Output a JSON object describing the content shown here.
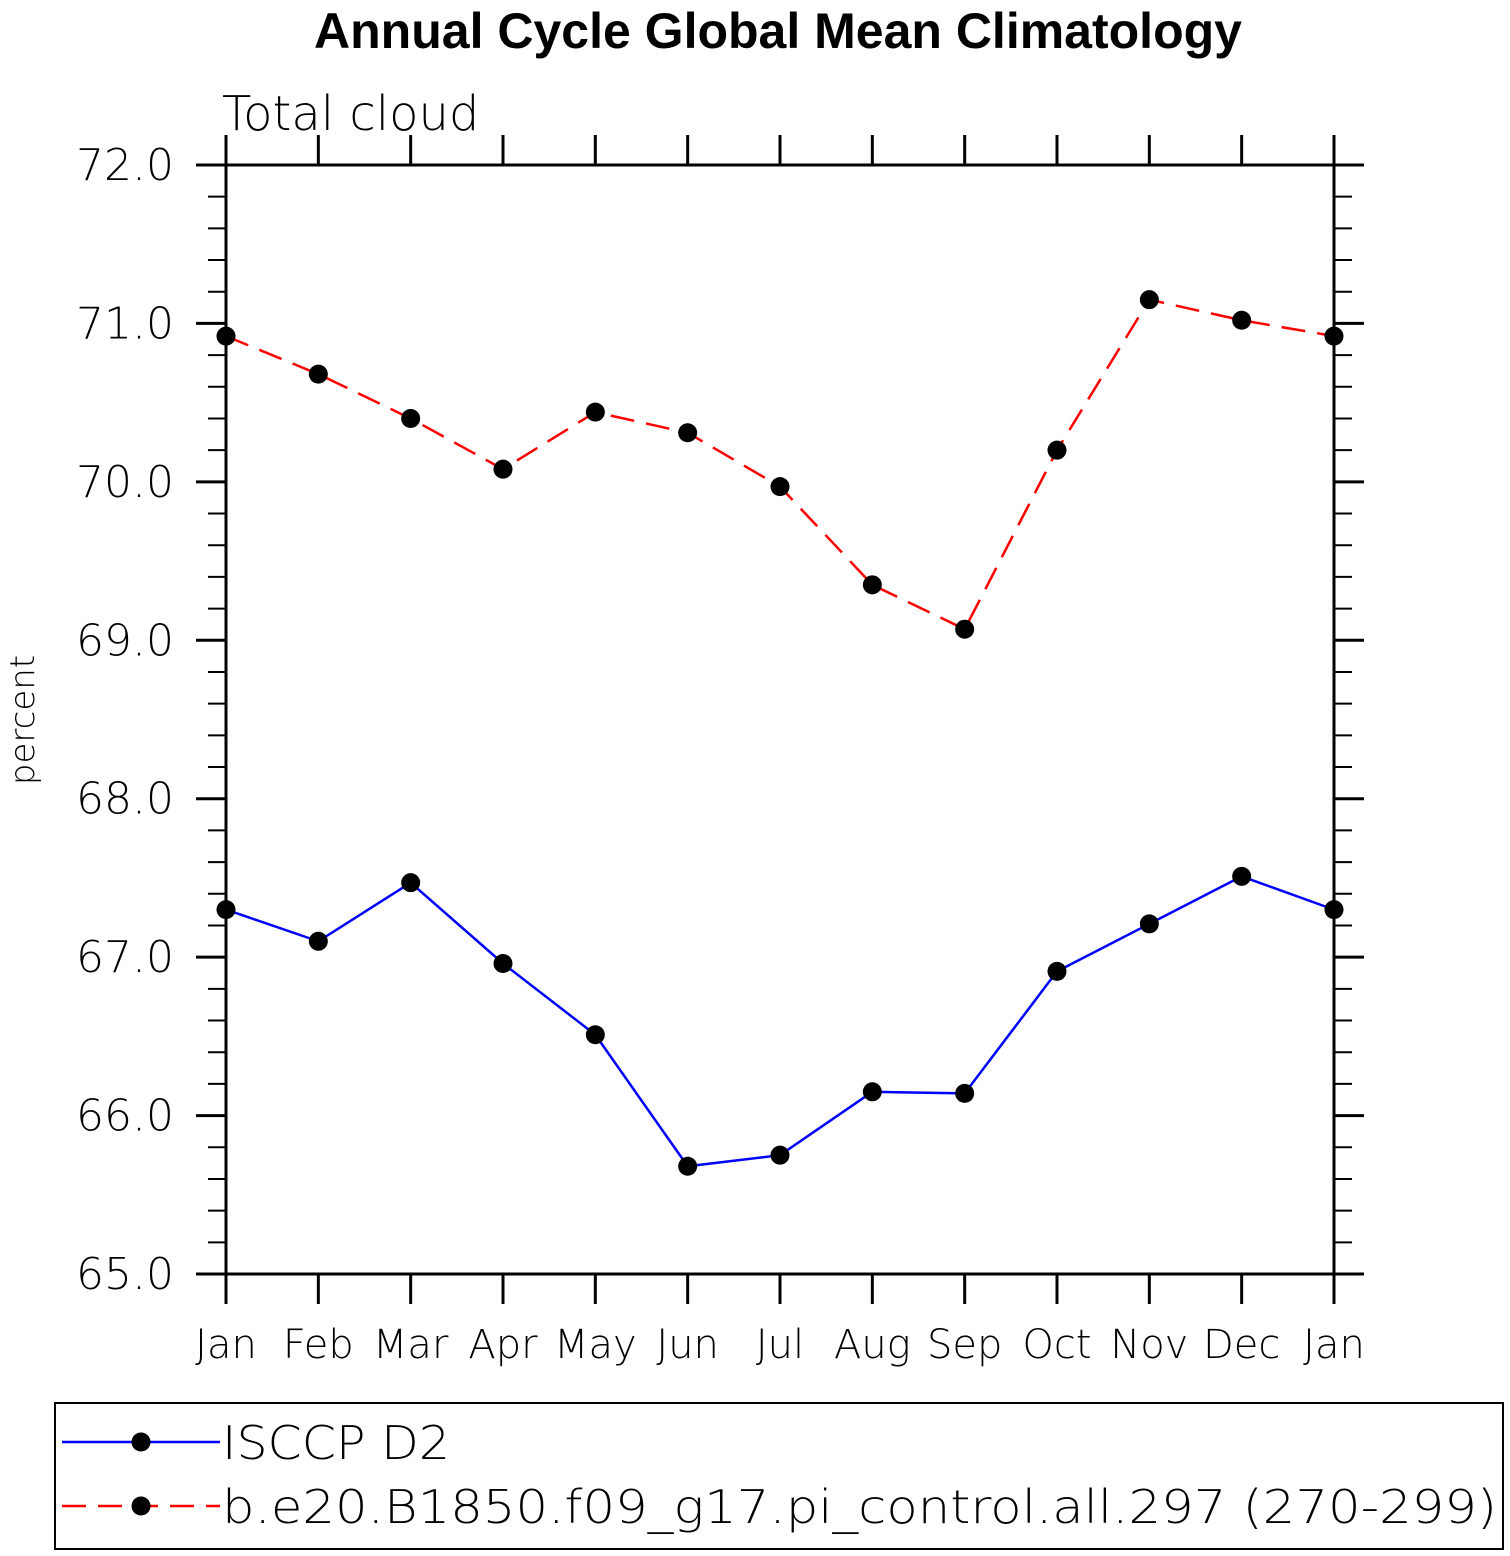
{
  "chart_data": {
    "type": "line",
    "title": "Annual Cycle Global Mean Climatology",
    "subtitle": "Total cloud",
    "xlabel": "",
    "ylabel": "percent",
    "categories": [
      "Jan",
      "Feb",
      "Mar",
      "Apr",
      "May",
      "Jun",
      "Jul",
      "Aug",
      "Sep",
      "Oct",
      "Nov",
      "Dec",
      "Jan"
    ],
    "ylim": [
      65.0,
      72.0
    ],
    "yticks": [
      "65.0",
      "66.0",
      "67.0",
      "68.0",
      "69.0",
      "70.0",
      "71.0",
      "72.0"
    ],
    "grid": false,
    "legend_position": "bottom",
    "series": [
      {
        "name": "ISCCP D2",
        "color": "#0000ff",
        "dash": "solid",
        "marker": "circle",
        "values": [
          67.3,
          67.1,
          67.47,
          66.96,
          66.51,
          65.68,
          65.75,
          66.15,
          66.14,
          66.91,
          67.21,
          67.51,
          67.3
        ]
      },
      {
        "name": "b.e20.B1850.f09_g17.pi_control.all.297 (270-299)",
        "color": "#ff0000",
        "dash": "dashed",
        "marker": "circle",
        "values": [
          70.92,
          70.68,
          70.4,
          70.08,
          70.44,
          70.31,
          69.97,
          69.35,
          69.07,
          70.2,
          71.15,
          71.02,
          70.92
        ]
      }
    ]
  }
}
